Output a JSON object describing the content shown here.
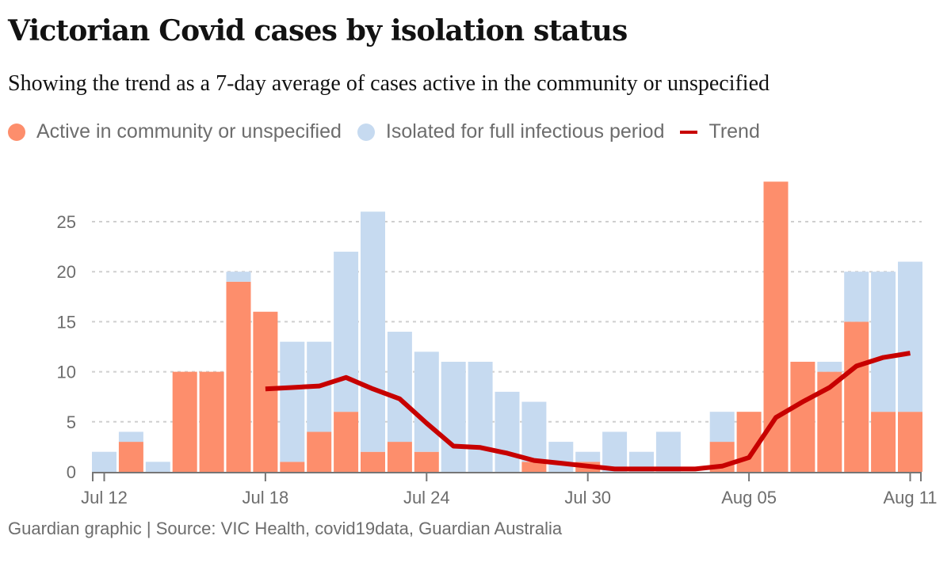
{
  "header": {
    "title": "Victorian Covid cases by isolation status",
    "subtitle": "Showing the trend as a 7-day average of cases active in the community or unspecified"
  },
  "legend": [
    {
      "label": "Active in community or unspecified",
      "color": "#fd8e6c",
      "shape": "dot"
    },
    {
      "label": "Isolated for full infectious period",
      "color": "#c6daf0",
      "shape": "dot"
    },
    {
      "label": "Trend",
      "color": "#c70000",
      "shape": "line"
    }
  ],
  "footer": "Guardian graphic | Source: VIC Health, covid19data, Guardian Australia",
  "chart_data": {
    "type": "bar",
    "stacked": true,
    "title": "Victorian Covid cases by isolation status",
    "xlabel": "",
    "ylabel": "",
    "ylim": [
      0,
      29
    ],
    "yticks": [
      0,
      5,
      10,
      15,
      20,
      25
    ],
    "grid": true,
    "legend_position": "top-left",
    "categories": [
      "Jul 12",
      "Jul 13",
      "Jul 14",
      "Jul 15",
      "Jul 16",
      "Jul 17",
      "Jul 18",
      "Jul 19",
      "Jul 20",
      "Jul 21",
      "Jul 22",
      "Jul 23",
      "Jul 24",
      "Jul 25",
      "Jul 26",
      "Jul 27",
      "Jul 28",
      "Jul 29",
      "Jul 30",
      "Jul 31",
      "Aug 01",
      "Aug 02",
      "Aug 03",
      "Aug 04",
      "Aug 05",
      "Aug 06",
      "Aug 07",
      "Aug 08",
      "Aug 09",
      "Aug 10",
      "Aug 11"
    ],
    "xtick_labels": [
      {
        "index": 0,
        "label": "Jul 12"
      },
      {
        "index": 6,
        "label": "Jul 18"
      },
      {
        "index": 12,
        "label": "Jul 24"
      },
      {
        "index": 18,
        "label": "Jul 30"
      },
      {
        "index": 24,
        "label": "Aug 05"
      },
      {
        "index": 30,
        "label": "Aug 11"
      }
    ],
    "series": [
      {
        "name": "Active in community or unspecified",
        "color": "#fd8e6c",
        "values": [
          0,
          3,
          0,
          10,
          10,
          19,
          16,
          1,
          4,
          6,
          2,
          3,
          2,
          0,
          0,
          0,
          1,
          0,
          1,
          0,
          0,
          0,
          0,
          3,
          6,
          29,
          11,
          10,
          15,
          6,
          6
        ]
      },
      {
        "name": "Isolated for full infectious period",
        "color": "#c6daf0",
        "values": [
          2,
          1,
          1,
          0,
          0,
          1,
          0,
          12,
          9,
          16,
          24,
          11,
          10,
          11,
          11,
          8,
          6,
          3,
          1,
          4,
          2,
          4,
          0,
          3,
          0,
          0,
          0,
          1,
          5,
          14,
          15
        ]
      },
      {
        "name": "Trend",
        "type": "line",
        "color": "#c70000",
        "start_index": 6,
        "values": [
          8.29,
          8.43,
          8.57,
          9.43,
          8.29,
          7.29,
          4.86,
          2.57,
          2.43,
          1.86,
          1.14,
          0.86,
          0.57,
          0.29,
          0.29,
          0.29,
          0.29,
          0.57,
          1.43,
          5.43,
          7.0,
          8.43,
          10.57,
          11.43,
          11.86
        ]
      }
    ]
  }
}
